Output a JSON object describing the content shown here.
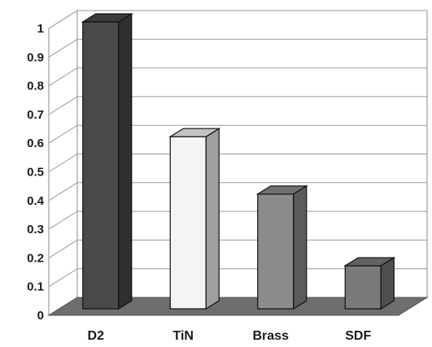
{
  "chart_data": {
    "type": "bar",
    "style": "3d-column",
    "categories": [
      "D2",
      "TiN",
      "Brass",
      "SDF"
    ],
    "values": [
      1.0,
      0.6,
      0.4,
      0.15
    ],
    "ylim": [
      0,
      1
    ],
    "yticks": [
      "0",
      "0.1",
      "0.2",
      "0.3",
      "0.4",
      "0.5",
      "0.6",
      "0.7",
      "0.8",
      "0.9",
      "1"
    ],
    "grid": true,
    "legend": "none",
    "bar_colors": [
      "#4a4a4a",
      "#f4f4f4",
      "#8c8c8c",
      "#7a7a7a"
    ],
    "floor_color": "#6e6e6e",
    "grid_color": "#9a9a9a"
  }
}
